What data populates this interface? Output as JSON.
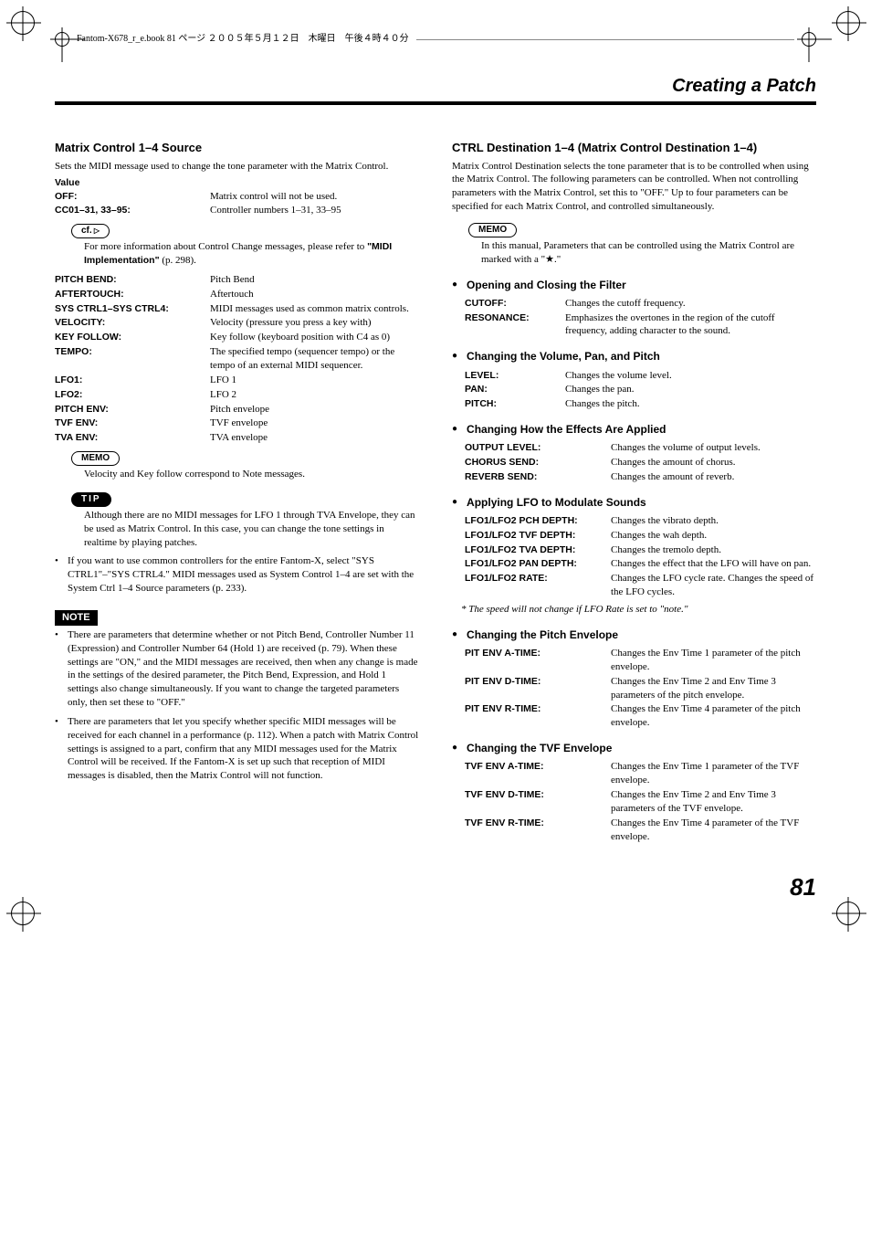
{
  "top_bar": "Fantom-X678_r_e.book  81 ページ  ２００５年５月１２日　木曜日　午後４時４０分",
  "header": "Creating a Patch",
  "page_number": "81",
  "left": {
    "h1": "Matrix Control 1–4 Source",
    "intro": "Sets the MIDI message used to change the tone parameter with the Matrix Control.",
    "value_label": "Value",
    "rows1": [
      {
        "k": "OFF:",
        "v": "Matrix control will not be used."
      },
      {
        "k": "CC01–31, 33–95:",
        "v": "Controller numbers 1–31, 33–95"
      }
    ],
    "cf_label": "cf.",
    "cf_text_a": "For more information about Control Change messages, please refer to ",
    "cf_text_b": "\"MIDI Implementation\"",
    "cf_text_c": " (p. 298).",
    "rows2": [
      {
        "k": "PITCH BEND:",
        "v": "Pitch Bend"
      },
      {
        "k": "AFTERTOUCH:",
        "v": "Aftertouch"
      },
      {
        "k": "SYS CTRL1–SYS CTRL4:",
        "v": "MIDI messages used as common matrix controls."
      },
      {
        "k": "VELOCITY:",
        "v": "Velocity (pressure you press a key with)"
      },
      {
        "k": "KEY FOLLOW:",
        "v": "Key follow (keyboard position with C4 as 0)"
      },
      {
        "k": "TEMPO:",
        "v": "The specified tempo (sequencer tempo) or the tempo of an external MIDI sequencer."
      },
      {
        "k": "LFO1:",
        "v": "LFO 1"
      },
      {
        "k": "LFO2:",
        "v": "LFO 2"
      },
      {
        "k": "PITCH ENV:",
        "v": "Pitch envelope"
      },
      {
        "k": "TVF ENV:",
        "v": "TVF envelope"
      },
      {
        "k": "TVA ENV:",
        "v": "TVA envelope"
      }
    ],
    "memo_label": "MEMO",
    "memo_text": "Velocity and Key follow correspond to Note messages.",
    "tip_label": "TIP",
    "tip_text": "Although there are no MIDI messages for LFO 1 through TVA Envelope, they can be used as Matrix Control. In this case, you can change the tone settings in realtime by playing patches.",
    "bullet1": "If you want to use common controllers for the entire Fantom-X, select \"SYS CTRL1\"–\"SYS CTRL4.\" MIDI messages used as System Control 1–4 are set with the System Ctrl 1–4 Source parameters (p. 233).",
    "note_label": "NOTE",
    "note_bullets": [
      "There are parameters that determine whether or not Pitch Bend, Controller Number 11 (Expression) and Controller Number 64 (Hold 1) are received (p. 79). When these settings are \"ON,\" and the MIDI messages are received, then when any change is made in the settings of the desired parameter, the Pitch Bend, Expression, and Hold 1 settings also change simultaneously. If you want to change the targeted parameters only, then set these to \"OFF.\"",
      "There are parameters that let you specify whether specific MIDI messages will be received for each channel in a performance (p. 112). When a patch with Matrix Control settings is assigned to a part, confirm that any MIDI messages used for the Matrix Control will be received. If the Fantom-X is set up such that reception of MIDI messages is disabled, then the Matrix Control will not function."
    ]
  },
  "right": {
    "h1": "CTRL Destination 1–4 (Matrix Control Destination 1–4)",
    "intro": "Matrix Control Destination selects the tone parameter that is to be controlled when using the Matrix Control. The following parameters can be controlled. When not controlling parameters with the Matrix Control, set this to \"OFF.\" Up to four parameters can be specified for each Matrix Control, and controlled simultaneously.",
    "memo_label": "MEMO",
    "memo_text": "In this manual, Parameters that can be controlled using the Matrix Control are marked with a \"★.\"",
    "sections": [
      {
        "title": "Opening and Closing the Filter",
        "rows": [
          {
            "k": "CUTOFF:",
            "v": "Changes the cutoff frequency."
          },
          {
            "k": "RESONANCE:",
            "v": "Emphasizes the overtones in the region of the cutoff frequency, adding character to the sound."
          }
        ]
      },
      {
        "title": "Changing the Volume, Pan, and Pitch",
        "rows": [
          {
            "k": "LEVEL:",
            "v": "Changes the volume level."
          },
          {
            "k": "PAN:",
            "v": "Changes the pan."
          },
          {
            "k": "PITCH:",
            "v": "Changes the pitch."
          }
        ]
      },
      {
        "title": "Changing How the Effects Are Applied",
        "rows": [
          {
            "k": "OUTPUT LEVEL:",
            "v": "Changes the volume of output levels."
          },
          {
            "k": "CHORUS SEND:",
            "v": "Changes the amount of chorus."
          },
          {
            "k": "REVERB SEND:",
            "v": "Changes the amount of reverb."
          }
        ]
      },
      {
        "title": "Applying LFO to Modulate Sounds",
        "rows": [
          {
            "k": "LFO1/LFO2 PCH DEPTH:",
            "v": "Changes the vibrato depth."
          },
          {
            "k": "LFO1/LFO2 TVF DEPTH:",
            "v": "Changes the wah depth."
          },
          {
            "k": "LFO1/LFO2 TVA DEPTH:",
            "v": "Changes the tremolo depth."
          },
          {
            "k": "LFO1/LFO2 PAN DEPTH:",
            "v": "Changes the effect that the LFO will have on pan."
          },
          {
            "k": "LFO1/LFO2 RATE:",
            "v": "Changes the LFO cycle rate. Changes the speed of the LFO cycles."
          }
        ],
        "footnote": "*   The speed will not change if LFO Rate is set to \"note.\""
      },
      {
        "title": "Changing the Pitch Envelope",
        "rows": [
          {
            "k": "PIT ENV A-TIME:",
            "v": "Changes the Env Time 1 parameter of the pitch envelope."
          },
          {
            "k": "PIT ENV D-TIME:",
            "v": "Changes the Env Time 2 and Env Time 3 parameters of the pitch envelope."
          },
          {
            "k": "PIT ENV R-TIME:",
            "v": "Changes the Env Time 4 parameter of the pitch envelope."
          }
        ]
      },
      {
        "title": "Changing the TVF Envelope",
        "rows": [
          {
            "k": "TVF ENV A-TIME:",
            "v": "Changes the Env Time 1 parameter of the TVF envelope."
          },
          {
            "k": "TVF ENV D-TIME:",
            "v": "Changes the Env Time 2 and Env Time 3 parameters of the TVF envelope."
          },
          {
            "k": "TVF ENV R-TIME:",
            "v": "Changes the Env Time 4 parameter of the TVF envelope."
          }
        ]
      }
    ]
  }
}
